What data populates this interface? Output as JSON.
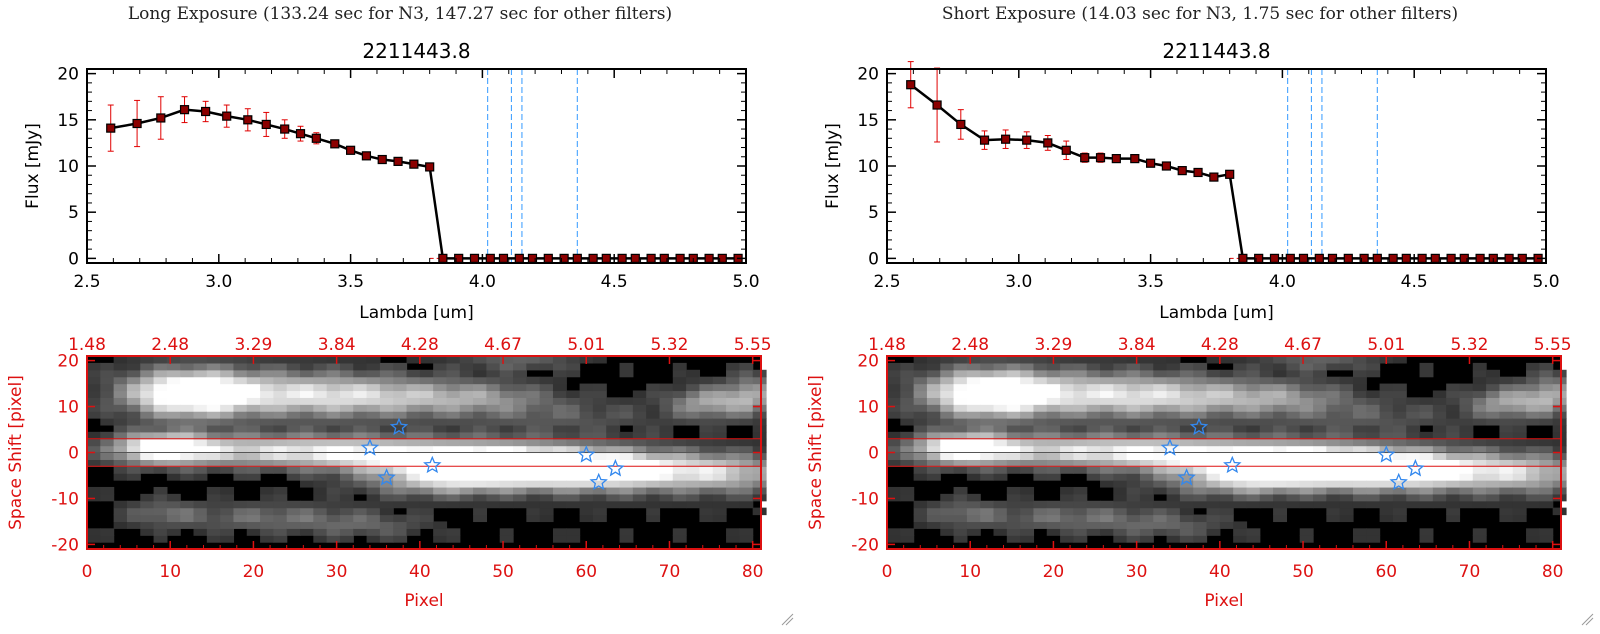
{
  "panels": [
    {
      "header": "Long Exposure (133.24 sec for N3, 147.27 sec for other filters)",
      "title": "2211443.8",
      "spec_xlabel": "Lambda [um]",
      "spec_ylabel": "Flux [mJy]",
      "img_xlabel": "Pixel",
      "img_ylabel": "Space Shift [pixel]"
    },
    {
      "header": "Short Exposure (14.03 sec for N3, 1.75 sec for other filters)",
      "title": "2211443.8",
      "spec_xlabel": "Lambda [um]",
      "spec_ylabel": "Flux [mJy]",
      "img_xlabel": "Pixel",
      "img_ylabel": "Space Shift [pixel]"
    }
  ],
  "colors": {
    "series": "#000000",
    "error": "#e00000",
    "marker": "#8b0000",
    "vline": "#3399ff",
    "red_axis": "#dd1111",
    "stars": "#3388ee"
  },
  "chart_data": [
    {
      "type": "line",
      "title": "2211443.8",
      "xlabel": "Lambda [um]",
      "ylabel": "Flux [mJy]",
      "xlim": [
        2.5,
        5.0
      ],
      "ylim": [
        -0.5,
        20.5
      ],
      "xticks": [
        "2.5",
        "3.0",
        "3.5",
        "4.0",
        "4.5",
        "5.0"
      ],
      "yticks": [
        "0",
        "5",
        "10",
        "15",
        "20"
      ],
      "vlines": [
        4.02,
        4.11,
        4.15,
        4.36
      ],
      "series": [
        {
          "x": [
            2.59,
            2.69,
            2.78,
            2.87,
            2.95,
            3.03,
            3.11,
            3.18,
            3.25,
            3.31,
            3.37,
            3.44,
            3.5,
            3.56,
            3.62,
            3.68,
            3.74,
            3.8,
            3.85,
            3.91,
            3.97,
            4.03,
            4.08,
            4.14,
            4.19,
            4.25,
            4.31,
            4.36,
            4.42,
            4.47,
            4.53,
            4.58,
            4.64,
            4.69,
            4.75,
            4.8,
            4.86,
            4.91,
            4.97
          ],
          "y": [
            14.1,
            14.6,
            15.2,
            16.1,
            15.9,
            15.4,
            15.0,
            14.5,
            14.0,
            13.5,
            13.0,
            12.4,
            11.7,
            11.1,
            10.7,
            10.5,
            10.2,
            9.9,
            0,
            0,
            0,
            0,
            0,
            0,
            0,
            0,
            0,
            0,
            0,
            0,
            0,
            0,
            0,
            0,
            0,
            0,
            0,
            0,
            0
          ],
          "err": [
            2.5,
            2.5,
            2.3,
            1.4,
            1.1,
            1.2,
            1.2,
            1.3,
            1.0,
            0.8,
            0.6,
            0.4,
            0.3,
            0.3,
            0.3,
            0.3,
            0.3,
            0.3,
            0,
            0,
            0,
            0,
            0,
            0,
            0,
            0,
            0,
            0,
            0,
            0,
            0,
            0,
            0,
            0,
            0,
            0,
            0,
            0,
            0
          ]
        }
      ]
    },
    {
      "type": "heatmap",
      "xlabel": "Pixel",
      "ylabel": "Space Shift [pixel]",
      "xlim": [
        0,
        81
      ],
      "ylim": [
        -21,
        21
      ],
      "xticks": [
        "0",
        "10",
        "20",
        "30",
        "40",
        "50",
        "60",
        "70",
        "80"
      ],
      "yticks": [
        "-20",
        "-10",
        "0",
        "10",
        "20"
      ],
      "top_axis_ticks": [
        "1.48",
        "2.48",
        "3.29",
        "3.84",
        "4.28",
        "4.67",
        "5.01",
        "5.32",
        "5.55"
      ],
      "hlines": [
        3,
        -3
      ],
      "stars": [
        [
          37.5,
          5.5
        ],
        [
          34,
          1
        ],
        [
          36,
          -5.5
        ],
        [
          41.5,
          -2.8
        ],
        [
          60,
          -0.5
        ],
        [
          63.5,
          -3.5
        ],
        [
          61.5,
          -6.5
        ]
      ]
    },
    {
      "type": "line",
      "title": "2211443.8",
      "xlabel": "Lambda [um]",
      "ylabel": "Flux [mJy]",
      "xlim": [
        2.5,
        5.0
      ],
      "ylim": [
        -0.5,
        20.5
      ],
      "xticks": [
        "2.5",
        "3.0",
        "3.5",
        "4.0",
        "4.5",
        "5.0"
      ],
      "yticks": [
        "0",
        "5",
        "10",
        "15",
        "20"
      ],
      "vlines": [
        4.02,
        4.11,
        4.15,
        4.36
      ],
      "series": [
        {
          "x": [
            2.59,
            2.69,
            2.78,
            2.87,
            2.95,
            3.03,
            3.11,
            3.18,
            3.25,
            3.31,
            3.37,
            3.44,
            3.5,
            3.56,
            3.62,
            3.68,
            3.74,
            3.8,
            3.85,
            3.91,
            3.97,
            4.03,
            4.08,
            4.14,
            4.19,
            4.25,
            4.31,
            4.36,
            4.42,
            4.47,
            4.53,
            4.58,
            4.64,
            4.69,
            4.75,
            4.8,
            4.86,
            4.91,
            4.97
          ],
          "y": [
            18.8,
            16.6,
            14.5,
            12.8,
            12.9,
            12.8,
            12.5,
            11.7,
            10.9,
            10.9,
            10.8,
            10.8,
            10.3,
            10.0,
            9.5,
            9.3,
            8.8,
            9.1,
            0,
            0,
            0,
            0,
            0,
            0,
            0,
            0,
            0,
            0,
            0,
            0,
            0,
            0,
            0,
            0,
            0,
            0,
            0,
            0,
            0
          ],
          "err": [
            2.5,
            4.0,
            1.6,
            1.0,
            1.0,
            0.9,
            0.8,
            1.0,
            0.5,
            0.5,
            0.4,
            0.4,
            0.3,
            0.3,
            0.3,
            0.3,
            0.3,
            0.3,
            0,
            0,
            0,
            0,
            0,
            0,
            0,
            0,
            0,
            0,
            0,
            0,
            0,
            0,
            0,
            0,
            0,
            0,
            0,
            0,
            0
          ]
        }
      ]
    },
    {
      "type": "heatmap",
      "xlabel": "Pixel",
      "ylabel": "Space Shift [pixel]",
      "xlim": [
        0,
        81
      ],
      "ylim": [
        -21,
        21
      ],
      "xticks": [
        "0",
        "10",
        "20",
        "30",
        "40",
        "50",
        "60",
        "70",
        "80"
      ],
      "yticks": [
        "-20",
        "-10",
        "0",
        "10",
        "20"
      ],
      "top_axis_ticks": [
        "1.48",
        "2.48",
        "3.29",
        "3.84",
        "4.28",
        "4.67",
        "5.01",
        "5.32",
        "5.55"
      ],
      "hlines": [
        3,
        -3
      ],
      "stars": [
        [
          37.5,
          5.5
        ],
        [
          34,
          1
        ],
        [
          36,
          -5.5
        ],
        [
          41.5,
          -2.8
        ],
        [
          60,
          -0.5
        ],
        [
          63.5,
          -3.5
        ],
        [
          61.5,
          -6.5
        ]
      ]
    }
  ]
}
